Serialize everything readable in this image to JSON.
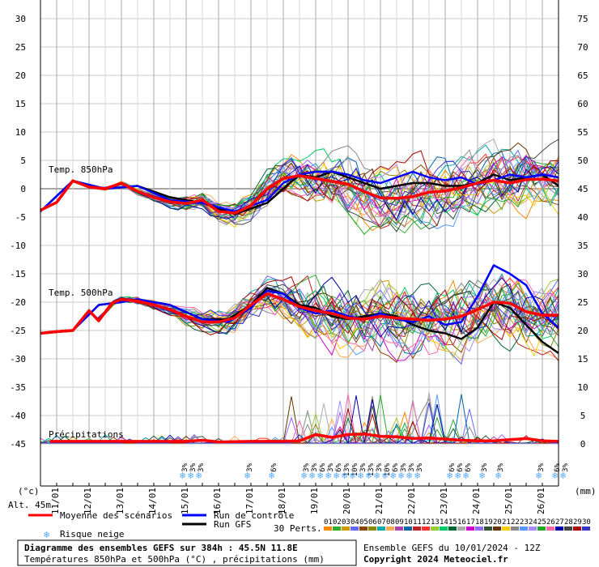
{
  "chart_data": {
    "type": "line",
    "title": "Diagramme des ensembles GEFS sur 384h : 45.5N 11.8E",
    "subtitle": "Températures 850hPa et 500hPa (°C) , précipitations (mm)",
    "left_axis": {
      "label": "(°c)",
      "ticks": [
        30,
        25,
        20,
        15,
        10,
        5,
        0,
        -5,
        -10,
        -15,
        -20,
        -25,
        -30,
        -35,
        -40,
        -45
      ],
      "range": [
        -45,
        30
      ]
    },
    "right_axis": {
      "label": "(mm)",
      "ticks": [
        75,
        70,
        65,
        60,
        55,
        50,
        45,
        40,
        35,
        30,
        25,
        20,
        15,
        10,
        5,
        0
      ],
      "range": [
        0,
        75
      ]
    },
    "x_labels": [
      "11/01",
      "12/01",
      "13/01",
      "14/01",
      "15/01",
      "16/01",
      "17/01",
      "18/01",
      "19/01",
      "20/01",
      "21/01",
      "22/01",
      "23/01",
      "24/01",
      "25/01",
      "26/01"
    ],
    "x_days": [
      0.5,
      1.5,
      2.5,
      3.5,
      4.5,
      5.5,
      6.5,
      7.5,
      8.5,
      9.5,
      10.5,
      11.5,
      12.5,
      13.5,
      14.5,
      15.5
    ],
    "altitude": "Alt. 45m",
    "panels": {
      "t850": "Temp. 850hPa",
      "t500": "Temp. 500hPa",
      "precip": "Précipitations"
    },
    "series": [
      {
        "name": "Moyenne des scénarios",
        "color": "#ff0000",
        "t850_days": [
          0,
          0.5,
          1,
          1.5,
          2,
          2.5,
          3,
          3.5,
          4,
          4.5,
          5,
          5.5,
          6,
          6.5,
          7,
          7.5,
          8,
          8.5,
          9,
          9.5,
          10,
          10.5,
          11,
          11.5,
          12,
          12.5,
          13,
          13.5,
          14,
          14.5,
          15,
          15.5,
          16
        ],
        "t850_values": [
          -3.8,
          -2.4,
          1.4,
          0.3,
          0,
          1,
          -0.5,
          -1.5,
          -2.3,
          -2.6,
          -2,
          -4,
          -4.3,
          -3,
          0,
          1.8,
          2.3,
          1.8,
          1.3,
          0.8,
          -0.5,
          -1.6,
          -1.7,
          -1.4,
          -0.6,
          -0.4,
          0.2,
          1,
          1.5,
          1,
          1.6,
          1.7,
          1.4
        ],
        "t500_days": [
          0,
          0.5,
          1,
          1.5,
          1.8,
          2.2,
          2.5,
          3,
          3.5,
          4,
          4.5,
          5,
          5.5,
          6,
          6.5,
          7,
          7.5,
          8,
          8.5,
          9,
          9.5,
          10,
          10.5,
          11,
          11.5,
          12,
          12.5,
          13,
          13.5,
          14,
          14.5,
          15,
          15.5,
          16
        ],
        "t500_values": [
          -25.5,
          -25.2,
          -25,
          -21.5,
          -23.3,
          -20.2,
          -19.5,
          -19.8,
          -20.5,
          -21.3,
          -22.5,
          -23.5,
          -23.5,
          -22.8,
          -20.5,
          -18.5,
          -19.5,
          -20.8,
          -21.5,
          -22,
          -22.8,
          -23,
          -22.5,
          -22.8,
          -23,
          -23.2,
          -23,
          -22.5,
          -21.3,
          -20,
          -20.2,
          -21.7,
          -22.3,
          -22.3
        ],
        "precip_days": [
          0.3,
          4.5,
          5,
          5.5,
          6.5,
          7.5,
          8,
          8.5,
          9,
          9.5,
          10,
          10.5,
          11,
          11.5,
          12,
          12.5,
          13,
          13.5,
          14,
          14.5,
          15,
          15.5,
          16
        ],
        "precip_values": [
          0.3,
          0.3,
          0.5,
          0.2,
          0.3,
          0.3,
          0.4,
          1.5,
          1,
          1.5,
          1.6,
          1.2,
          1.1,
          0.8,
          0.9,
          0.7,
          0.5,
          0.4,
          0.4,
          0.6,
          0.8,
          0.4,
          0.3
        ]
      },
      {
        "name": "Run de contrôle",
        "color": "#0000ff",
        "t850_days": [
          0,
          1,
          2,
          3,
          4,
          5,
          6,
          7,
          7.5,
          8,
          8.5,
          9,
          9.5,
          10,
          10.5,
          11,
          11.5,
          12,
          12.5,
          13,
          13.5,
          14,
          14.5,
          15,
          15.5,
          16
        ],
        "t850_values": [
          -4,
          1.4,
          0,
          0.5,
          -2,
          -2.5,
          -4,
          -2,
          1,
          2.5,
          3,
          3,
          2.5,
          1.5,
          1,
          2,
          3,
          2,
          1.5,
          2,
          0.8,
          1.5,
          2.5,
          2,
          2.5,
          2
        ],
        "t500_days": [
          0,
          1,
          1.8,
          2.5,
          3,
          4,
          5,
          5.8,
          6.5,
          7,
          7.5,
          8,
          8.5,
          9,
          9.5,
          10,
          10.5,
          11,
          11.5,
          12,
          12.5,
          13,
          13.5,
          14,
          14.5,
          15,
          15.5,
          16
        ],
        "t500_values": [
          -25.5,
          -25,
          -20.5,
          -20,
          -19.5,
          -20.5,
          -23,
          -23.5,
          -21,
          -18,
          -18.5,
          -21,
          -22,
          -21.5,
          -22.5,
          -23,
          -22,
          -23,
          -23.5,
          -22.5,
          -24,
          -23.5,
          -19,
          -13.5,
          -15,
          -17,
          -22,
          -24.5
        ]
      },
      {
        "name": "Run GFS",
        "color": "#000000",
        "t850_days": [
          0,
          1,
          2,
          3,
          4,
          5,
          6,
          7,
          7.5,
          8,
          8.5,
          9,
          9.5,
          10,
          10.5,
          11,
          11.5,
          12,
          12.5,
          13,
          13.5,
          14,
          14.5,
          15,
          15.5,
          16
        ],
        "t850_values": [
          -4,
          1.4,
          0,
          0.5,
          -1.5,
          -2.5,
          -4.5,
          -2.5,
          0,
          2.5,
          2,
          3,
          2,
          1,
          0,
          0.5,
          1,
          1,
          0.5,
          0.5,
          1,
          2.5,
          1.5,
          2,
          2.5,
          0.5
        ],
        "t500_days": [
          0,
          1,
          1.8,
          2.5,
          3,
          4,
          5,
          5.8,
          6.5,
          7,
          7.5,
          8,
          8.5,
          9,
          9.5,
          10,
          10.5,
          11,
          11.5,
          12,
          12.5,
          13,
          13.5,
          14,
          14.5,
          15,
          15.5,
          16
        ],
        "t500_values": [
          -25.5,
          -25,
          -20.5,
          -20,
          -19.5,
          -20.5,
          -23,
          -23,
          -20.5,
          -17.5,
          -18.5,
          -20.5,
          -21,
          -22.5,
          -23,
          -22.5,
          -22,
          -22.5,
          -24,
          -25,
          -25.5,
          -26.5,
          -24.5,
          -20,
          -21,
          -24,
          -27,
          -29
        ]
      }
    ],
    "perturbation_count": 30,
    "snow_risk": [
      {
        "day": 4.45,
        "percent": "3%"
      },
      {
        "day": 4.7,
        "percent": "3%"
      },
      {
        "day": 4.95,
        "percent": "3%"
      },
      {
        "day": 6.45,
        "percent": "3%"
      },
      {
        "day": 7.2,
        "percent": "6%"
      },
      {
        "day": 8.2,
        "percent": "3%"
      },
      {
        "day": 8.45,
        "percent": "3%"
      },
      {
        "day": 8.7,
        "percent": "6%"
      },
      {
        "day": 8.95,
        "percent": "3%"
      },
      {
        "day": 9.2,
        "percent": "6%"
      },
      {
        "day": 9.45,
        "percent": "13%"
      },
      {
        "day": 9.7,
        "percent": "10%"
      },
      {
        "day": 9.95,
        "percent": "3%"
      },
      {
        "day": 10.2,
        "percent": "13%"
      },
      {
        "day": 10.45,
        "percent": "3%"
      },
      {
        "day": 10.7,
        "percent": "10%"
      },
      {
        "day": 10.95,
        "percent": "6%"
      },
      {
        "day": 11.2,
        "percent": "3%"
      },
      {
        "day": 11.45,
        "percent": "3%"
      },
      {
        "day": 11.7,
        "percent": "3%"
      },
      {
        "day": 12.7,
        "percent": "6%"
      },
      {
        "day": 12.95,
        "percent": "6%"
      },
      {
        "day": 13.2,
        "percent": "6%"
      },
      {
        "day": 13.7,
        "percent": "3%"
      },
      {
        "day": 14.2,
        "percent": "3%"
      },
      {
        "day": 15.45,
        "percent": "3%"
      },
      {
        "day": 15.95,
        "percent": "6%"
      },
      {
        "day": 16.2,
        "percent": "3%"
      }
    ]
  },
  "legend": {
    "mean": "Moyenne des scénarios",
    "control": "Run de contrôle",
    "gfs": "Run GFS",
    "snow": "Risque neige",
    "perts": "30 Perts.",
    "pert_numbers": [
      "01",
      "02",
      "03",
      "04",
      "05",
      "06",
      "07",
      "08",
      "09",
      "10",
      "11",
      "12",
      "13",
      "14",
      "15",
      "16",
      "17",
      "18",
      "19",
      "20",
      "21",
      "22",
      "23",
      "24",
      "25",
      "26",
      "27",
      "28",
      "29",
      "30"
    ],
    "pert_colors": [
      "#ff8800",
      "#33aa33",
      "#cc9900",
      "#6666ff",
      "#884400",
      "#888800",
      "#00aaaa",
      "#ffaa55",
      "#aa44aa",
      "#0066aa",
      "#bb2222",
      "#ff3333",
      "#99cc33",
      "#00cc66",
      "#006633",
      "#aaaaaa",
      "#cc00cc",
      "#9966ff",
      "#335533",
      "#663300",
      "#ffcc00",
      "#888888",
      "#5599ff",
      "#aa88ff",
      "#22aa22",
      "#ff66aa",
      "#0000aa",
      "#444444",
      "#aa0000",
      "#3333cc"
    ]
  },
  "footer": {
    "title": "Diagramme des ensembles GEFS sur 384h : 45.5N 11.8E",
    "subtitle": "Températures 850hPa et 500hPa (°C) , précipitations (mm)",
    "run": "Ensemble GEFS du 10/01/2024 - 12Z",
    "copyright": "Copyright 2024 Meteociel.fr"
  }
}
